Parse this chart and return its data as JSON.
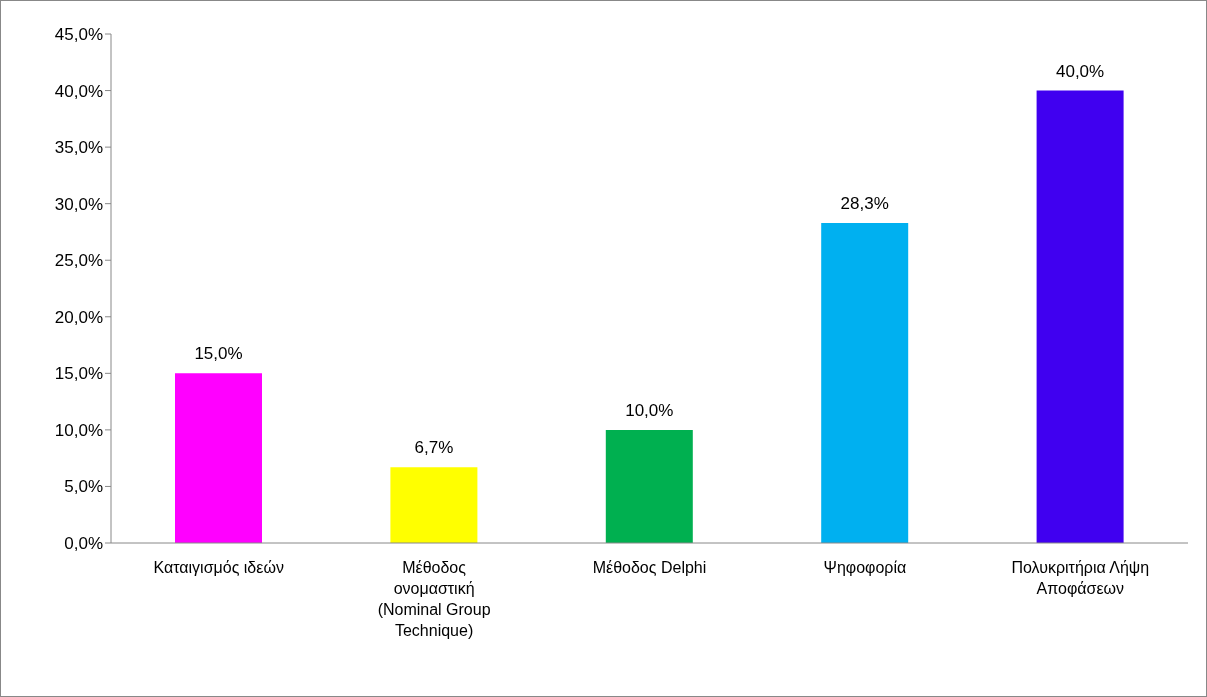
{
  "chart_data": {
    "type": "bar",
    "categories": [
      "Καταιγισμός ιδεών",
      "Μέθοδος ονομαστική (Nominal Group Technique)",
      "Μέθοδος Delphi",
      "Ψηφοφορία",
      "Πολυκριτήρια Λήψη Αποφάσεων"
    ],
    "values": [
      15,
      6.7,
      10,
      28.3,
      40
    ],
    "colors": [
      "#ff00ff",
      "#ffff00",
      "#00b050",
      "#00b0f0",
      "#4000f0"
    ],
    "value_labels": [
      "15,0%",
      "6,7%",
      "10,0%",
      "28,3%",
      "40,0%"
    ],
    "ylim": [
      0,
      45
    ],
    "yticks": [
      {
        "value": 0,
        "label": "0,0%"
      },
      {
        "value": 5,
        "label": "5,0%"
      },
      {
        "value": 10,
        "label": "10,0%"
      },
      {
        "value": 15,
        "label": "15,0%"
      },
      {
        "value": 20,
        "label": "20,0%"
      },
      {
        "value": 25,
        "label": "25,0%"
      },
      {
        "value": 30,
        "label": "30,0%"
      },
      {
        "value": 35,
        "label": "35,0%"
      },
      {
        "value": 40,
        "label": "40,0%"
      },
      {
        "value": 45,
        "label": "45,0%"
      }
    ],
    "grid": false,
    "legend": false
  }
}
